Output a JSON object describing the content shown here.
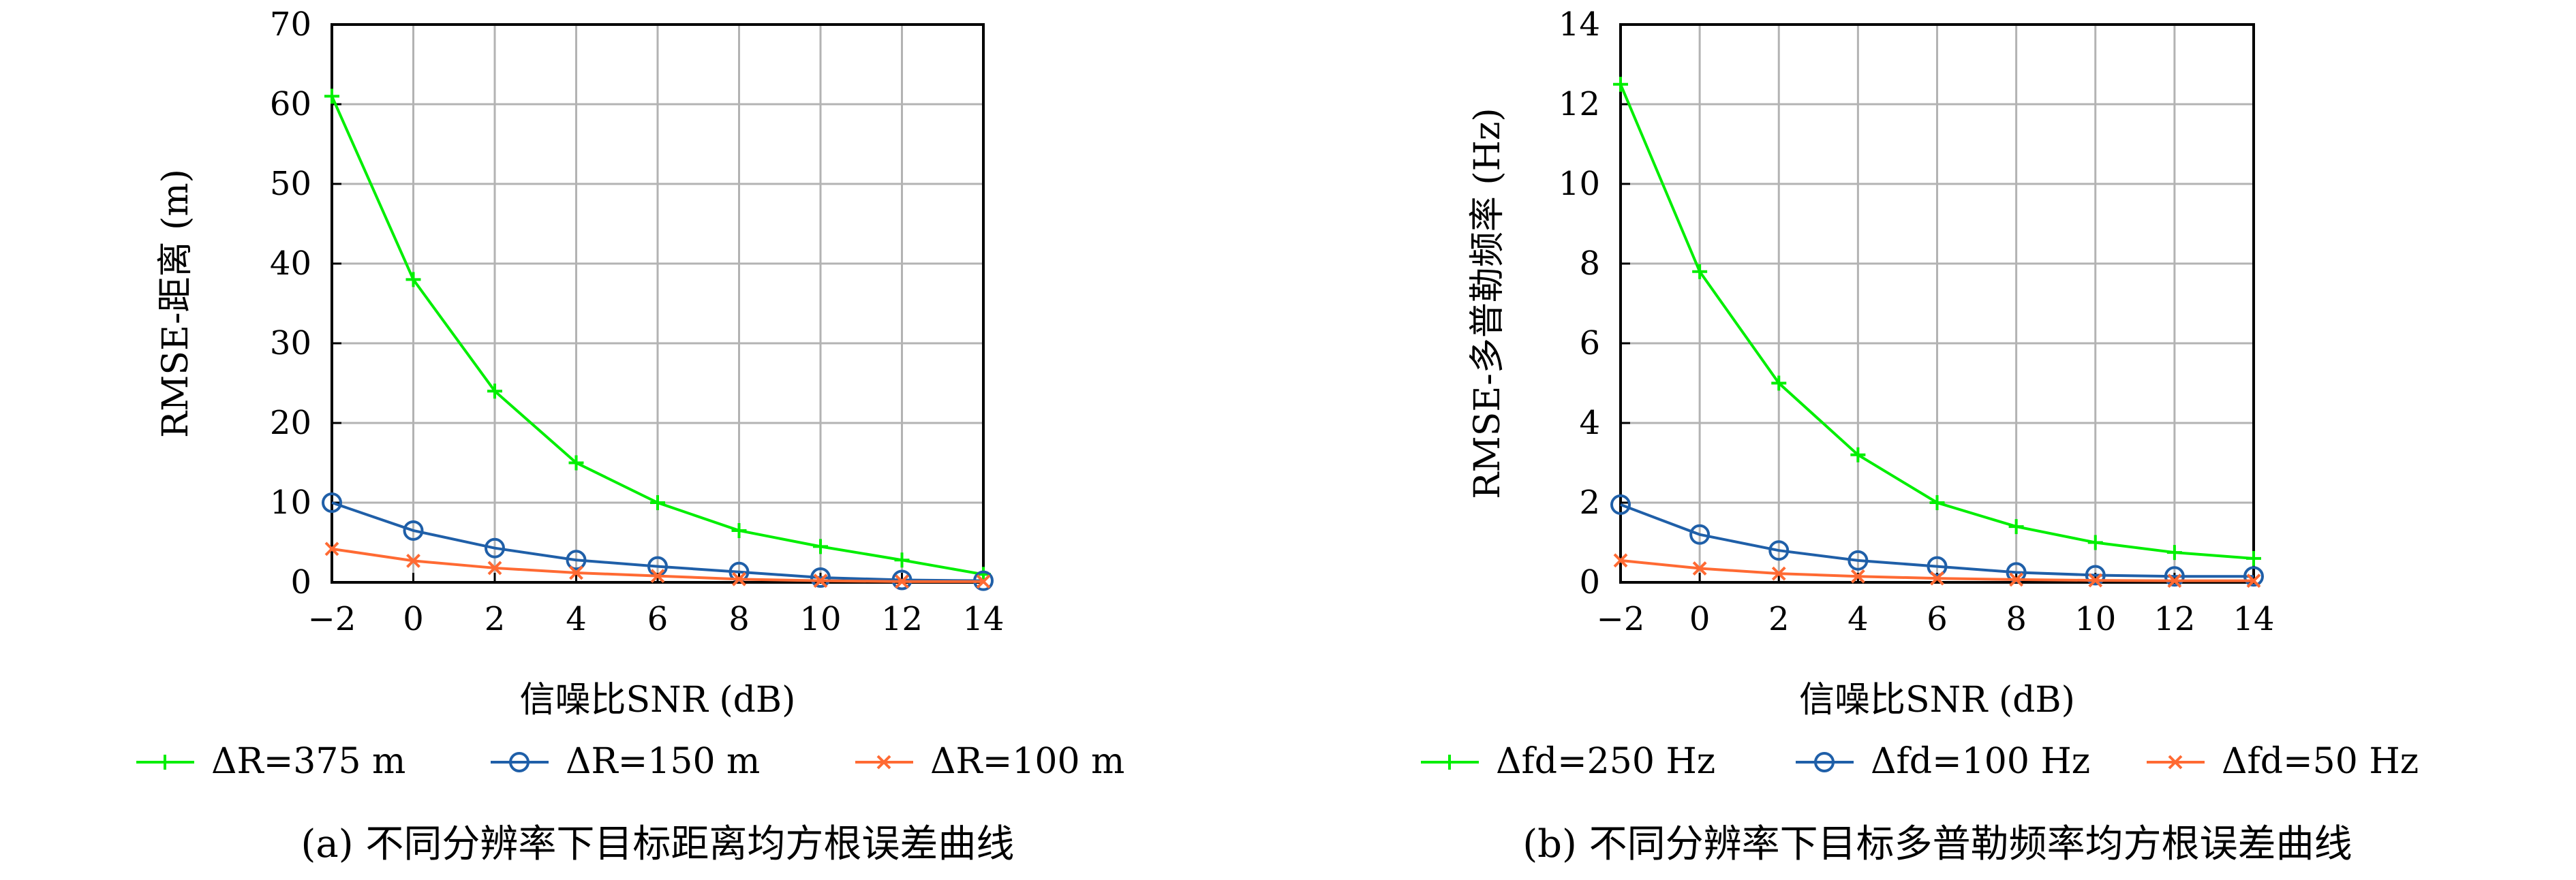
{
  "chart_data": [
    {
      "type": "line",
      "x": [
        -2,
        0,
        2,
        4,
        6,
        8,
        10,
        12,
        14
      ],
      "xlabel": "信噪比SNR (dB)",
      "ylabel": "RMSE-距离 (m)",
      "xlim": [
        -2,
        14
      ],
      "ylim": [
        0,
        70
      ],
      "xticks": [
        "−2",
        "0",
        "2",
        "4",
        "6",
        "8",
        "10",
        "12",
        "14"
      ],
      "yticks": [
        "0",
        "10",
        "20",
        "30",
        "40",
        "50",
        "60",
        "70"
      ],
      "grid": true,
      "legend_position": "bottom",
      "caption": "(a) 不同分辨率下目标距离均方根误差曲线",
      "series": [
        {
          "name": "ΔR=375 m",
          "color": "#00ee00",
          "marker": "plus",
          "values": [
            61,
            38,
            24,
            15,
            10,
            6.5,
            4.5,
            2.8,
            1.0
          ]
        },
        {
          "name": "ΔR=150 m",
          "color": "#1f5fa8",
          "marker": "circle",
          "values": [
            10,
            6.5,
            4.3,
            2.8,
            2.0,
            1.3,
            0.6,
            0.3,
            0.2
          ]
        },
        {
          "name": "ΔR=100 m",
          "color": "#ff6a33",
          "marker": "x",
          "values": [
            4.2,
            2.7,
            1.8,
            1.2,
            0.8,
            0.4,
            0.2,
            0.1,
            0.1
          ]
        }
      ]
    },
    {
      "type": "line",
      "x": [
        -2,
        0,
        2,
        4,
        6,
        8,
        10,
        12,
        14
      ],
      "xlabel": "信噪比SNR (dB)",
      "ylabel": "RMSE-多普勒频率 (Hz)",
      "xlim": [
        -2,
        14
      ],
      "ylim": [
        0,
        14
      ],
      "xticks": [
        "−2",
        "0",
        "2",
        "4",
        "6",
        "8",
        "10",
        "12",
        "14"
      ],
      "yticks": [
        "0",
        "2",
        "4",
        "6",
        "8",
        "10",
        "12",
        "14"
      ],
      "grid": true,
      "legend_position": "bottom",
      "caption": "(b) 不同分辨率下目标多普勒频率均方根误差曲线",
      "series": [
        {
          "name": "Δfd=250 Hz",
          "color": "#00ee00",
          "marker": "plus",
          "values": [
            12.5,
            7.8,
            5.0,
            3.2,
            2.0,
            1.4,
            1.0,
            0.75,
            0.6
          ]
        },
        {
          "name": "Δfd=100 Hz",
          "color": "#1f5fa8",
          "marker": "circle",
          "values": [
            1.95,
            1.2,
            0.8,
            0.55,
            0.4,
            0.25,
            0.18,
            0.15,
            0.15
          ]
        },
        {
          "name": "Δfd=50 Hz",
          "color": "#ff6a33",
          "marker": "x",
          "values": [
            0.55,
            0.35,
            0.22,
            0.15,
            0.1,
            0.07,
            0.05,
            0.04,
            0.04
          ]
        }
      ]
    }
  ]
}
